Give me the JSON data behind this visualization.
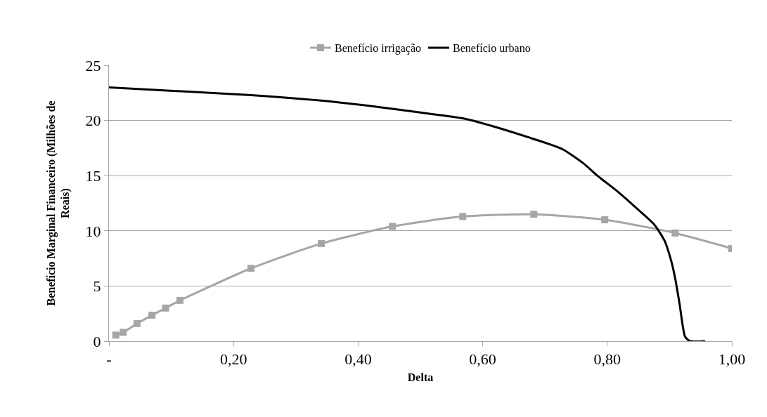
{
  "chart_data": {
    "type": "line",
    "xlabel": "Delta",
    "ylabel": "Benefício Marginal Financeiro (Milhões de Reais)",
    "xlim": [
      0,
      1
    ],
    "ylim": [
      0,
      25
    ],
    "xticks": [
      {
        "value": 0,
        "label": "-"
      },
      {
        "value": 0.2,
        "label": "0,20"
      },
      {
        "value": 0.4,
        "label": "0,40"
      },
      {
        "value": 0.6,
        "label": "0,60"
      },
      {
        "value": 0.8,
        "label": "0,80"
      },
      {
        "value": 1,
        "label": "1,00"
      }
    ],
    "yticks": [
      0,
      5,
      10,
      15,
      20,
      25
    ],
    "grid": "y",
    "legend": "top",
    "series": [
      {
        "name": "Benefício irrigação",
        "color": "#a6a6a6",
        "marker": "square",
        "x": [
          0.011,
          0.023,
          0.045,
          0.069,
          0.091,
          0.114,
          0.228,
          0.341,
          0.455,
          0.568,
          0.682,
          0.796,
          0.909,
          1.0
        ],
        "values": [
          0.55,
          0.8,
          1.6,
          2.35,
          3.0,
          3.7,
          6.6,
          8.85,
          10.4,
          11.3,
          11.5,
          11.0,
          9.8,
          8.4
        ]
      },
      {
        "name": "Benefício urbano",
        "color": "#000000",
        "marker": "none",
        "x": [
          0,
          0.228,
          0.341,
          0.435,
          0.502,
          0.568,
          0.615,
          0.672,
          0.728,
          0.762,
          0.784,
          0.818,
          0.852,
          0.875,
          0.892,
          0.903,
          0.909,
          0.916,
          0.925,
          0.933,
          0.957
        ],
        "values": [
          23.0,
          22.3,
          21.8,
          21.2,
          20.7,
          20.2,
          19.5,
          18.5,
          17.4,
          16.1,
          15.0,
          13.5,
          11.8,
          10.6,
          9.1,
          7.2,
          5.7,
          3.4,
          0.4,
          0,
          0
        ]
      }
    ]
  }
}
